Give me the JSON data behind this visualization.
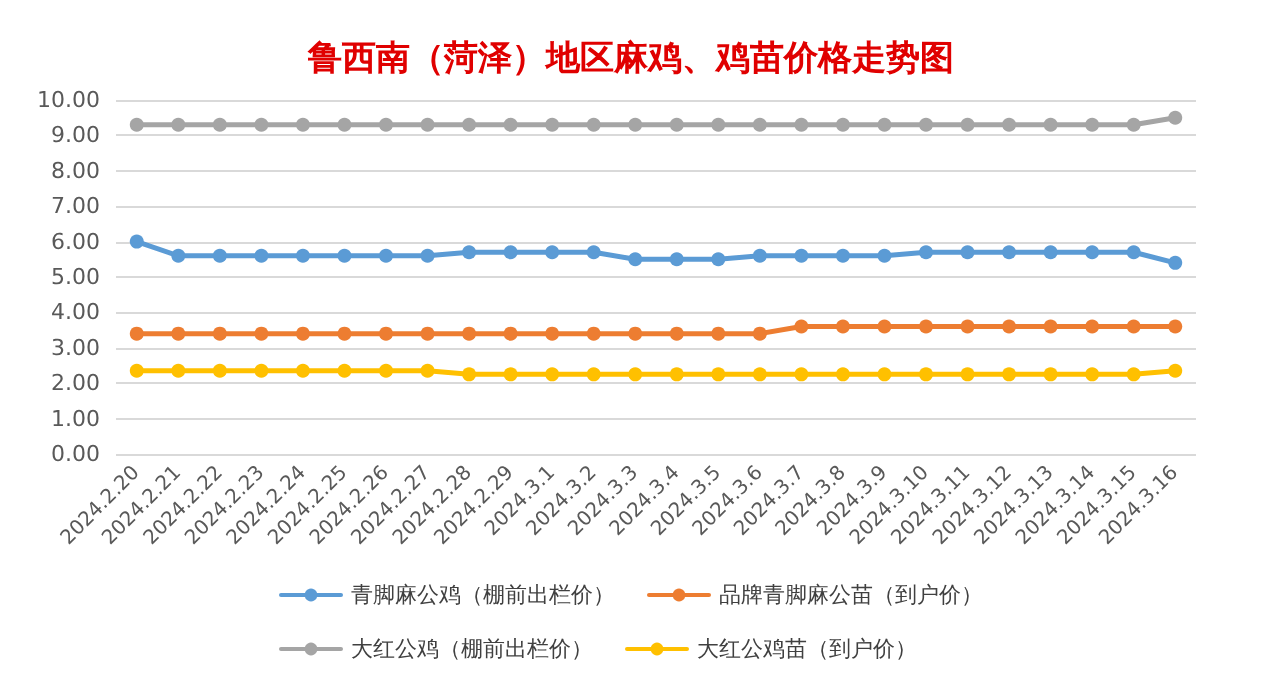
{
  "chart_data": {
    "type": "line",
    "title": "鲁西南（菏泽）地区麻鸡、鸡苗价格走势图",
    "categories": [
      "2024.2.20",
      "2024.2.21",
      "2024.2.22",
      "2024.2.23",
      "2024.2.24",
      "2024.2.25",
      "2024.2.26",
      "2024.2.27",
      "2024.2.28",
      "2024.2.29",
      "2024.3.1",
      "2024.3.2",
      "2024.3.3",
      "2024.3.4",
      "2024.3.5",
      "2024.3.6",
      "2024.3.7",
      "2024.3.8",
      "2024.3.9",
      "2024.3.10",
      "2024.3.11",
      "2024.3.12",
      "2024.3.13",
      "2024.3.14",
      "2024.3.15",
      "2024.3.16"
    ],
    "series": [
      {
        "name": "青脚麻公鸡（棚前出栏价）",
        "color": "#5b9bd5",
        "values": [
          6.0,
          5.6,
          5.6,
          5.6,
          5.6,
          5.6,
          5.6,
          5.6,
          5.7,
          5.7,
          5.7,
          5.7,
          5.5,
          5.5,
          5.5,
          5.6,
          5.6,
          5.6,
          5.6,
          5.7,
          5.7,
          5.7,
          5.7,
          5.7,
          5.7,
          5.4
        ]
      },
      {
        "name": "品牌青脚麻公苗（到户价）",
        "color": "#ed7d31",
        "values": [
          3.4,
          3.4,
          3.4,
          3.4,
          3.4,
          3.4,
          3.4,
          3.4,
          3.4,
          3.4,
          3.4,
          3.4,
          3.4,
          3.4,
          3.4,
          3.4,
          3.6,
          3.6,
          3.6,
          3.6,
          3.6,
          3.6,
          3.6,
          3.6,
          3.6,
          3.6
        ]
      },
      {
        "name": "大红公鸡（棚前出栏价）",
        "color": "#a5a5a5",
        "values": [
          9.3,
          9.3,
          9.3,
          9.3,
          9.3,
          9.3,
          9.3,
          9.3,
          9.3,
          9.3,
          9.3,
          9.3,
          9.3,
          9.3,
          9.3,
          9.3,
          9.3,
          9.3,
          9.3,
          9.3,
          9.3,
          9.3,
          9.3,
          9.3,
          9.3,
          9.5
        ]
      },
      {
        "name": "大红公鸡苗（到户价）",
        "color": "#ffc000",
        "values": [
          2.35,
          2.35,
          2.35,
          2.35,
          2.35,
          2.35,
          2.35,
          2.35,
          2.25,
          2.25,
          2.25,
          2.25,
          2.25,
          2.25,
          2.25,
          2.25,
          2.25,
          2.25,
          2.25,
          2.25,
          2.25,
          2.25,
          2.25,
          2.25,
          2.25,
          2.35
        ]
      }
    ],
    "ylim": [
      0,
      10
    ],
    "yticks": [
      {
        "value": 0,
        "label": "0.00"
      },
      {
        "value": 1,
        "label": "1.00"
      },
      {
        "value": 2,
        "label": "2.00"
      },
      {
        "value": 3,
        "label": "3.00"
      },
      {
        "value": 4,
        "label": "4.00"
      },
      {
        "value": 5,
        "label": "5.00"
      },
      {
        "value": 6,
        "label": "6.00"
      },
      {
        "value": 7,
        "label": "7.00"
      },
      {
        "value": 8,
        "label": "8.00"
      },
      {
        "value": 9,
        "label": "9.00"
      },
      {
        "value": 10,
        "label": "10.00"
      }
    ],
    "grid": "y",
    "legend": "bottom",
    "marker": "circle",
    "line_style": "solid"
  }
}
